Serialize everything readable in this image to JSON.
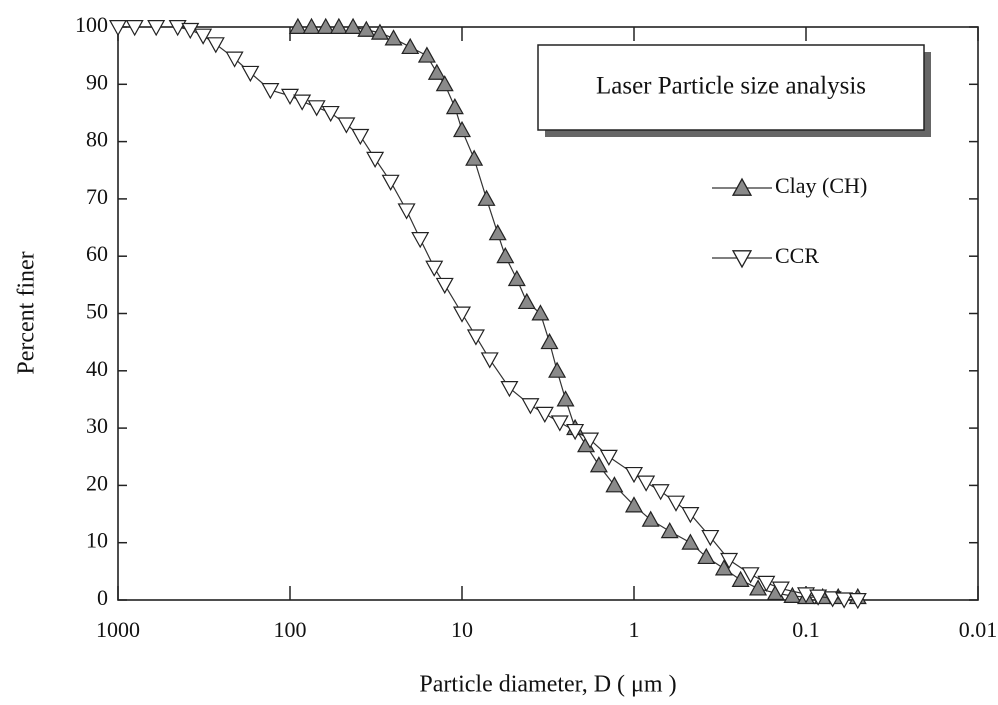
{
  "chart_data": {
    "type": "scatter",
    "title": "Laser Particle size analysis",
    "x_label": "Particle diameter, D ( μm )",
    "y_label": "Percent finer",
    "xscale": "log",
    "xlim": [
      1000,
      0.01
    ],
    "xticks": [
      1000,
      100,
      10,
      1,
      0.1,
      0.01
    ],
    "ylim": [
      0,
      100
    ],
    "yticks": [
      0,
      10,
      20,
      30,
      40,
      50,
      60,
      70,
      80,
      90,
      100
    ],
    "legend": "right",
    "series": [
      {
        "name": "Clay (CH)",
        "color": "#8a8a8a",
        "marker": "triangle-up",
        "x": [
          90,
          75,
          62,
          52,
          43,
          36,
          30,
          25,
          20,
          16,
          14,
          12.6,
          11,
          10,
          8.5,
          7.2,
          6.2,
          5.6,
          4.8,
          4.2,
          3.5,
          3.1,
          2.8,
          2.5,
          2.2,
          1.9,
          1.6,
          1.3,
          1.0,
          0.8,
          0.62,
          0.47,
          0.38,
          0.3,
          0.24,
          0.19,
          0.15,
          0.12,
          0.1,
          0.08,
          0.065,
          0.05
        ],
        "values": [
          100,
          100,
          100,
          100,
          100,
          99.5,
          99,
          98,
          96.5,
          95,
          92,
          90,
          86,
          82,
          77,
          70,
          64,
          60,
          56,
          52,
          50,
          45,
          40,
          35,
          30,
          27,
          23.5,
          20,
          16.5,
          14,
          12,
          10,
          7.5,
          5.5,
          3.5,
          2,
          1.2,
          0.7,
          0.5,
          0.5,
          0.5,
          0.5
        ]
      },
      {
        "name": "CCR",
        "color": "#ffffff",
        "marker": "triangle-down",
        "x": [
          1000,
          800,
          600,
          450,
          380,
          320,
          270,
          210,
          170,
          130,
          100,
          85,
          70,
          58,
          47,
          39,
          32,
          26,
          21,
          17.5,
          14.5,
          12.6,
          10,
          8.3,
          6.9,
          5.3,
          4,
          3.3,
          2.7,
          2.2,
          1.8,
          1.4,
          1,
          0.85,
          0.7,
          0.57,
          0.47,
          0.36,
          0.28,
          0.21,
          0.17,
          0.14,
          0.1,
          0.085,
          0.07,
          0.06,
          0.05
        ],
        "values": [
          100,
          100,
          100,
          100,
          99.5,
          98.5,
          97,
          94.5,
          92,
          89,
          88,
          87,
          86,
          85,
          83,
          81,
          77,
          73,
          68,
          63,
          58,
          55,
          50,
          46,
          42,
          37,
          34,
          32.5,
          31,
          29.5,
          28,
          25,
          22,
          20.5,
          19,
          17,
          15,
          11,
          7,
          4.5,
          3,
          2,
          1,
          0.6,
          0.3,
          0.1,
          0
        ]
      }
    ]
  }
}
